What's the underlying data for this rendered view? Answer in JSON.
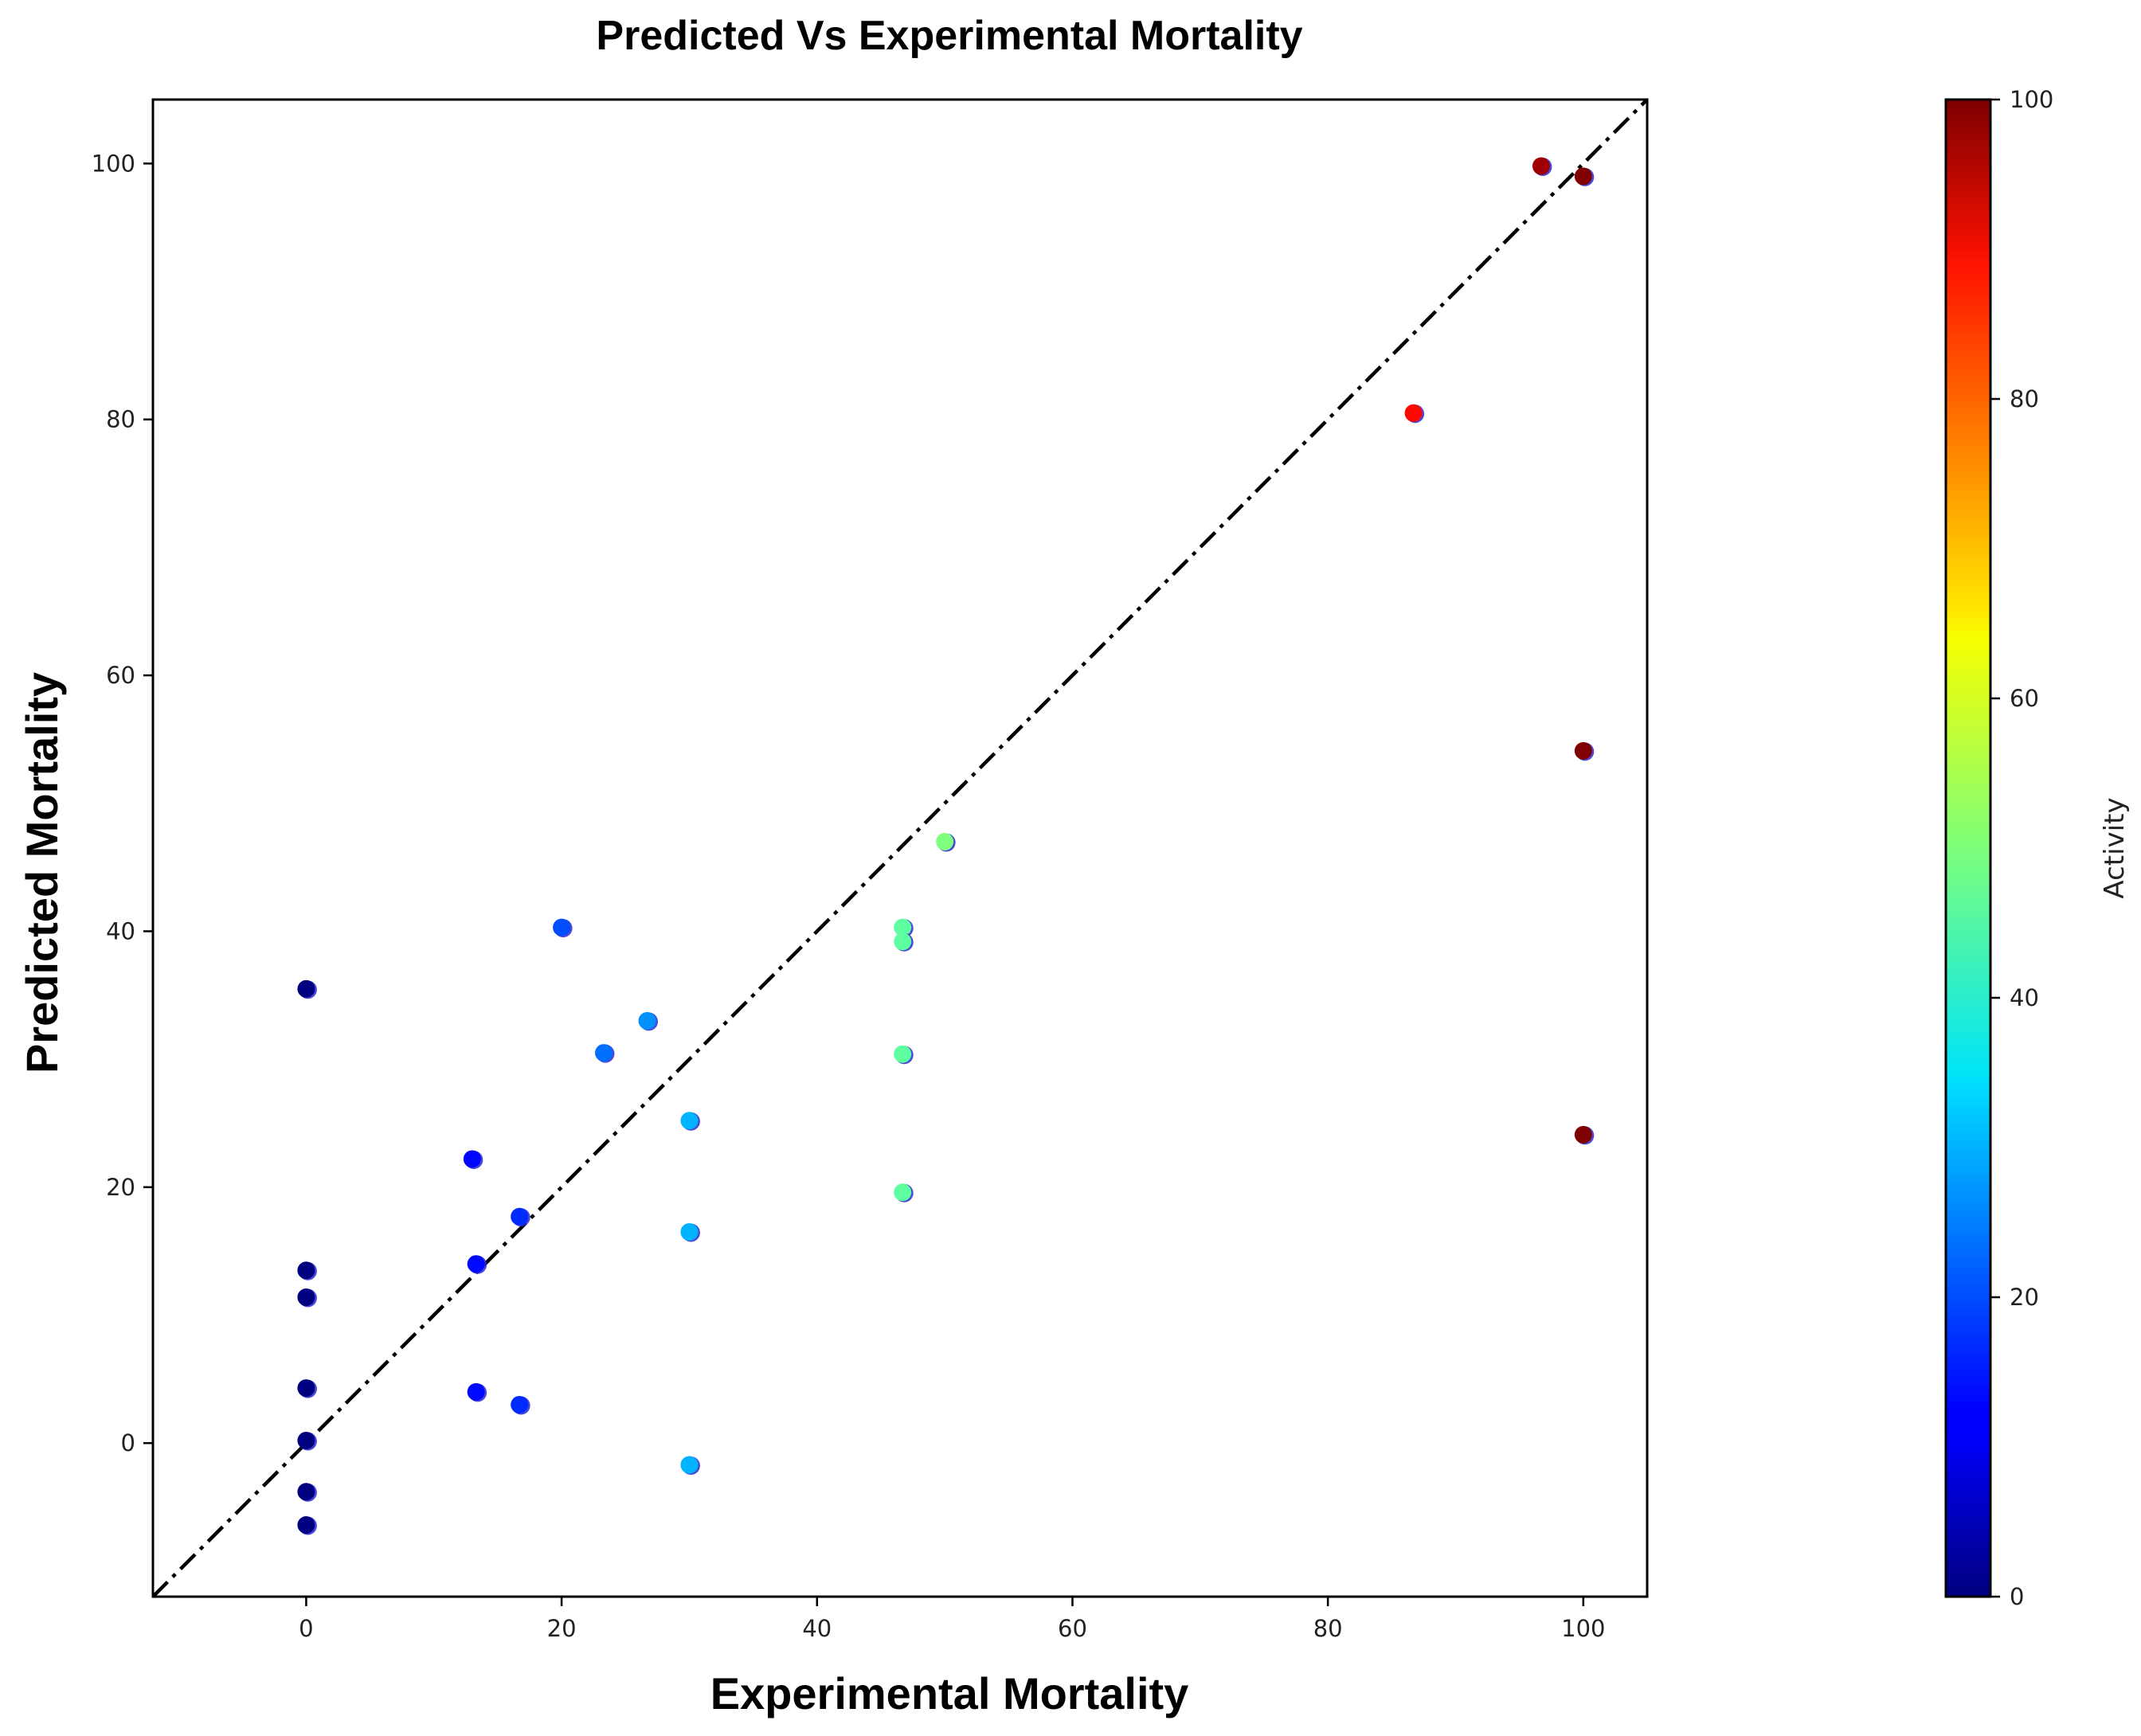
{
  "chart_data": {
    "type": "scatter",
    "title": "Predicted Vs Experimental Mortality",
    "xlabel": "Experimental Mortality",
    "ylabel": "Predicted Mortality",
    "xlim": [
      -12,
      105
    ],
    "ylim": [
      -12,
      105
    ],
    "xticks": [
      0,
      20,
      40,
      60,
      80,
      100
    ],
    "yticks": [
      0,
      20,
      40,
      60,
      80,
      100
    ],
    "reference_line": {
      "style": "dash-dot",
      "color": "#000000",
      "from": [
        -12,
        -12
      ],
      "to": [
        105,
        105
      ]
    },
    "colorbar": {
      "label": "Activity",
      "colormap": "jet",
      "range": [
        0,
        100
      ],
      "ticks": [
        0,
        20,
        40,
        60,
        80,
        100
      ]
    },
    "points": [
      {
        "x": 0,
        "y": 35.5,
        "activity": 0
      },
      {
        "x": 0,
        "y": 13.5,
        "activity": 0
      },
      {
        "x": 0,
        "y": 11.4,
        "activity": 0
      },
      {
        "x": 0,
        "y": 4.3,
        "activity": 0
      },
      {
        "x": 0,
        "y": 0.2,
        "activity": 0
      },
      {
        "x": 0,
        "y": -3.8,
        "activity": 0
      },
      {
        "x": 0,
        "y": -6.4,
        "activity": 0
      },
      {
        "x": 13,
        "y": 22.2,
        "activity": 13
      },
      {
        "x": 13.3,
        "y": 14,
        "activity": 13.3
      },
      {
        "x": 13.3,
        "y": 4,
        "activity": 13.3
      },
      {
        "x": 16.7,
        "y": 17.7,
        "activity": 16.7
      },
      {
        "x": 16.7,
        "y": 3,
        "activity": 16.7
      },
      {
        "x": 20,
        "y": 40.3,
        "activity": 20
      },
      {
        "x": 23.3,
        "y": 30.5,
        "activity": 23.3
      },
      {
        "x": 26.7,
        "y": 33,
        "activity": 26.7
      },
      {
        "x": 30,
        "y": 25.2,
        "activity": 30
      },
      {
        "x": 30,
        "y": 16.5,
        "activity": 30
      },
      {
        "x": 30,
        "y": -1.7,
        "activity": 30
      },
      {
        "x": 46.7,
        "y": 40.3,
        "activity": 46.7
      },
      {
        "x": 46.7,
        "y": 39.2,
        "activity": 46.7
      },
      {
        "x": 46.7,
        "y": 30.4,
        "activity": 46.7
      },
      {
        "x": 46.7,
        "y": 19.6,
        "activity": 46.7
      },
      {
        "x": 50,
        "y": 47,
        "activity": 50
      },
      {
        "x": 86.7,
        "y": 80.5,
        "activity": 86.7
      },
      {
        "x": 96.7,
        "y": 99.8,
        "activity": 96.7
      },
      {
        "x": 100,
        "y": 99,
        "activity": 100
      },
      {
        "x": 100,
        "y": 54.1,
        "activity": 100
      },
      {
        "x": 100,
        "y": 24.1,
        "activity": 100
      }
    ]
  }
}
